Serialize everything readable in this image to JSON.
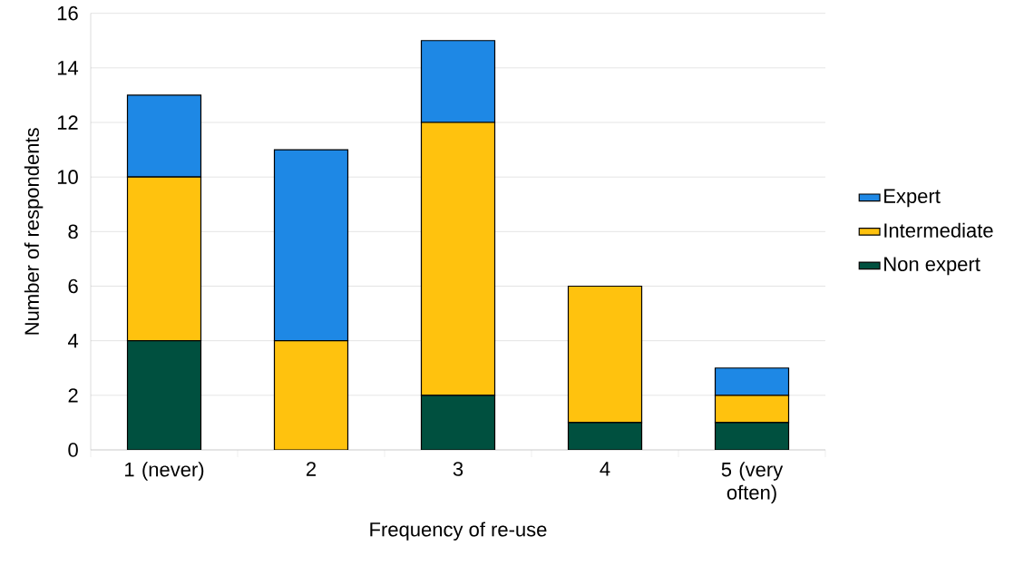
{
  "chart_data": {
    "type": "bar",
    "stacked": true,
    "xlabel": "Frequency of re-use",
    "ylabel": "Number of respondents",
    "categories": [
      "1 (never)",
      "2",
      "3",
      "4",
      "5 (very often)"
    ],
    "series": [
      {
        "name": "Non expert",
        "color": "#00503f",
        "values": [
          4,
          0,
          2,
          1,
          1
        ]
      },
      {
        "name": "Intermediate",
        "color": "#ffc20e",
        "values": [
          6,
          4,
          10,
          5,
          1
        ]
      },
      {
        "name": "Expert",
        "color": "#1e88e5",
        "values": [
          3,
          7,
          3,
          0,
          1
        ]
      }
    ],
    "ylim": [
      0,
      16
    ],
    "yticks": [
      0,
      2,
      4,
      6,
      8,
      10,
      12,
      14,
      16
    ],
    "grid": "y",
    "legend": "right"
  }
}
